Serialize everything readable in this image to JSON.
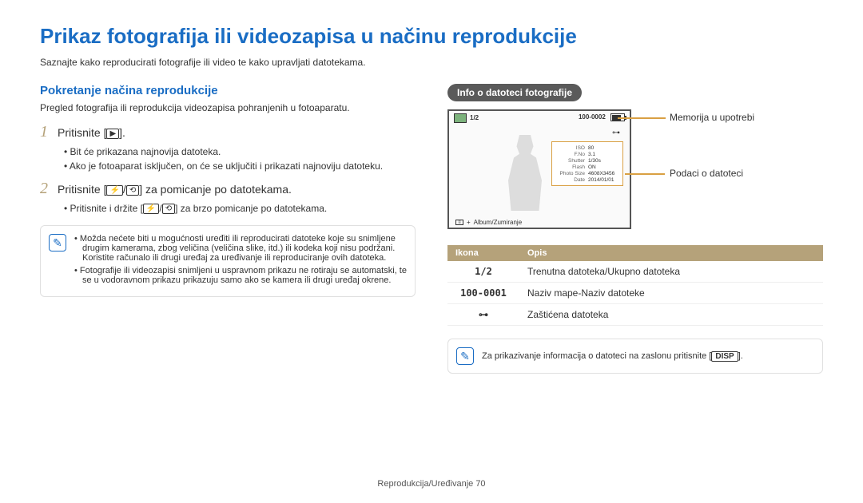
{
  "title": "Prikaz fotografija ili videozapisa u načinu reprodukcije",
  "subtitle": "Saznajte kako reproducirati fotografije ili video te kako upravljati datotekama.",
  "left": {
    "section_title": "Pokretanje načina reprodukcije",
    "section_desc": "Pregled fotografija ili reprodukcija videozapisa pohranjenih u fotoaparatu.",
    "step1_text": "Pritisnite [",
    "step1_icon": "▶",
    "step1_after": "].",
    "step1_b1": "Bit će prikazana najnovija datoteka.",
    "step1_b2": "Ako je fotoaparat isključen, on će se uključiti i prikazati najnoviju datoteku.",
    "step2_text": "Pritisnite [",
    "step2_icon1": "⚡",
    "step2_sep": "/",
    "step2_icon2": "⟲",
    "step2_after": "] za pomicanje po datotekama.",
    "step2_b1_a": "Pritisnite i držite [",
    "step2_b1_b": "] za brzo pomicanje po datotekama.",
    "note1": "Možda nećete biti u mogućnosti uređiti ili reproducirati datoteke koje su snimljene drugim kamerama, zbog veličina (veličina slike, itd.) ili kodeka koji nisu podržani. Koristite računalo ili drugi uređaj za uređivanje ili reproduciranje ovih datoteka.",
    "note2": "Fotografije ili videozapisi snimljeni u uspravnom prikazu ne rotiraju se automatski, te se u vodoravnom prikazu prikazuju samo ako se kamera ili drugi uređaj okrene."
  },
  "right": {
    "pill": "Info o datoteci fotografije",
    "callout_memory": "Memorija u upotrebi",
    "callout_info": "Podaci o datoteci",
    "topbar_left_count": "1/2",
    "topbar_right_file": "100-0002",
    "info_rows": [
      {
        "k": "ISO",
        "v": "80"
      },
      {
        "k": "F.No",
        "v": "3.1"
      },
      {
        "k": "Shutter",
        "v": "1/30s"
      },
      {
        "k": "Flash",
        "v": "ON"
      },
      {
        "k": "Photo Size",
        "v": "4608X3456"
      },
      {
        "k": "Date",
        "v": "2014/01/01"
      }
    ],
    "bottom_caption": "Album/Zumiranje",
    "table_header_icon": "Ikona",
    "table_header_desc": "Opis",
    "table_rows": [
      {
        "icon": "1/2",
        "desc": "Trenutna datoteka/Ukupno datoteka"
      },
      {
        "icon": "100-0001",
        "desc": "Naziv mape-Naziv datoteke"
      },
      {
        "icon": "⊶",
        "desc": "Zaštićena datoteka"
      }
    ],
    "disp_note_a": "Za prikazivanje informacija o datoteci na zaslonu pritisnite [",
    "disp_btn": "DISP",
    "disp_note_b": "]."
  },
  "footer": "Reprodukcija/Uređivanje  70"
}
